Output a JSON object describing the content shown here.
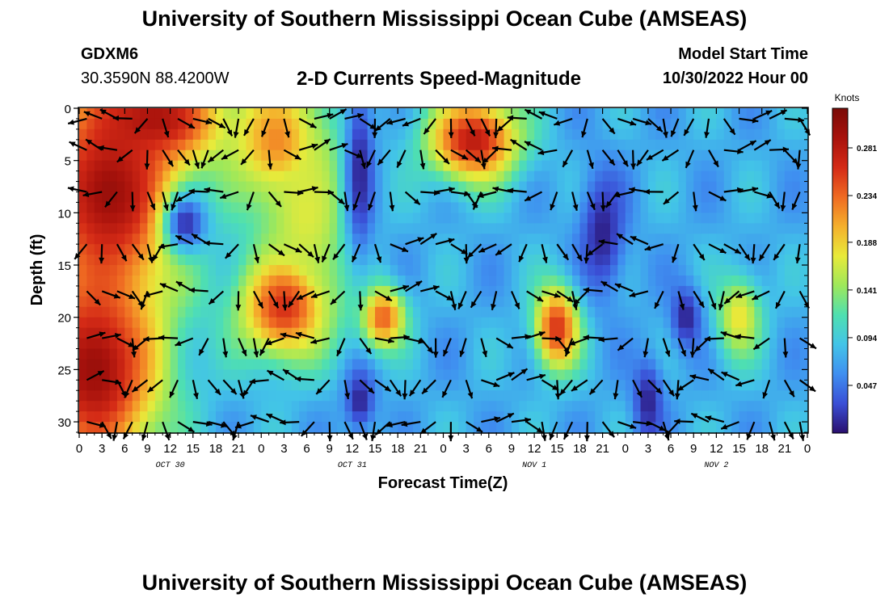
{
  "header": {
    "title": "University of Southern Mississippi Ocean Cube (AMSEAS)",
    "station": "GDXM6",
    "coords": "30.3590N  88.4200W",
    "subtitle": "2-D Currents Speed-Magnitude",
    "start_label": "Model Start Time",
    "start_value": "10/30/2022 Hour 00"
  },
  "footer": {
    "title": "University of Southern Mississippi Ocean Cube (AMSEAS)"
  },
  "colors": {
    "scale": [
      "#2a0f6e",
      "#3a4fd6",
      "#3f8ff0",
      "#42c4e8",
      "#4fe0b0",
      "#9ee85a",
      "#e8ea3a",
      "#f5b02c",
      "#ef6a22",
      "#d42a16",
      "#a8120c",
      "#7a0b07"
    ],
    "arrow": "#000000"
  },
  "chart_data": {
    "type": "heatmap",
    "xlabel": "Forecast Time(Z)",
    "ylabel": "Depth (ft)",
    "x_ticks": [
      "0",
      "3",
      "6",
      "9",
      "12",
      "15",
      "18",
      "21",
      "0",
      "3",
      "6",
      "9",
      "12",
      "15",
      "18",
      "21",
      "0",
      "3",
      "6",
      "9",
      "12",
      "15",
      "18",
      "21",
      "0",
      "3",
      "6",
      "9",
      "12",
      "15",
      "18",
      "21",
      "0"
    ],
    "x_range_hours": [
      0,
      96
    ],
    "date_labels": [
      {
        "label": "OCT 30",
        "hour": 12
      },
      {
        "label": "OCT 31",
        "hour": 36
      },
      {
        "label": "NOV 1",
        "hour": 60
      },
      {
        "label": "NOV 2",
        "hour": 84
      }
    ],
    "y_ticks": [
      0,
      5,
      10,
      15,
      20,
      25,
      30
    ],
    "ylim": [
      0,
      31
    ],
    "y_inverted": true,
    "colorbar": {
      "title": "Knots",
      "ticks": [
        0.281,
        0.234,
        0.188,
        0.141,
        0.094,
        0.047
      ],
      "range": [
        0,
        0.32
      ]
    },
    "speed_hotspots": [
      {
        "hour": 4,
        "depth": 8,
        "speed": 0.3,
        "radius": [
          10,
          10
        ]
      },
      {
        "hour": 2,
        "depth": 25,
        "speed": 0.3,
        "radius": [
          9,
          10
        ]
      },
      {
        "hour": 10,
        "depth": 1,
        "speed": 0.29,
        "radius": [
          9,
          4
        ]
      },
      {
        "hour": 27,
        "depth": 19,
        "speed": 0.26,
        "radius": [
          6,
          5
        ]
      },
      {
        "hour": 26,
        "depth": 3,
        "speed": 0.22,
        "radius": [
          6,
          6
        ]
      },
      {
        "hour": 52,
        "depth": 3,
        "speed": 0.28,
        "radius": [
          6,
          4
        ]
      },
      {
        "hour": 40,
        "depth": 20,
        "speed": 0.24,
        "radius": [
          3,
          3
        ]
      },
      {
        "hour": 63,
        "depth": 21,
        "speed": 0.26,
        "radius": [
          3,
          4
        ]
      },
      {
        "hour": 87,
        "depth": 20,
        "speed": 0.18,
        "radius": [
          3,
          4
        ]
      },
      {
        "hour": 30,
        "depth": 10,
        "speed": 0.17,
        "radius": [
          6,
          9
        ]
      }
    ],
    "calm_zones": [
      {
        "hour": 14,
        "depth": 11,
        "radius": [
          3,
          3
        ]
      },
      {
        "hour": 37,
        "depth": 6,
        "radius": [
          2,
          9
        ]
      },
      {
        "hour": 37,
        "depth": 28,
        "radius": [
          2,
          3
        ]
      },
      {
        "hour": 75,
        "depth": 28,
        "radius": [
          2,
          4
        ]
      },
      {
        "hour": 80,
        "depth": 20,
        "radius": [
          2,
          3
        ]
      },
      {
        "hour": 69,
        "depth": 12,
        "radius": [
          3,
          6
        ]
      }
    ],
    "vector_spacing_hours": 2,
    "vector_depths": [
      1,
      4,
      8,
      13,
      17.5,
      22,
      26,
      30
    ]
  }
}
